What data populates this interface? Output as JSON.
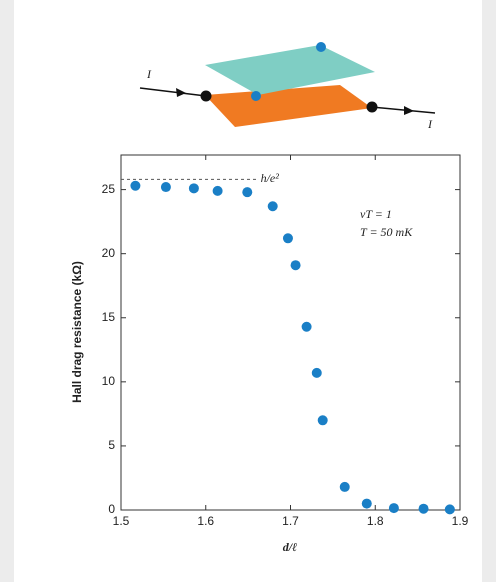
{
  "diagram": {
    "labels": [
      "I",
      "I"
    ]
  },
  "chart_data": {
    "type": "scatter",
    "x_label": "d/ℓ",
    "y_label": "Hall drag resistance (kΩ)",
    "annotations": [
      "νT = 1",
      "T = 50 mK"
    ],
    "reference_line": {
      "value": 25.8,
      "label": "h/e²",
      "x_range": [
        1.5,
        1.66
      ]
    },
    "color": "#1a7fc6",
    "x": [
      1.517,
      1.553,
      1.586,
      1.614,
      1.649,
      1.679,
      1.697,
      1.706,
      1.719,
      1.731,
      1.738,
      1.764,
      1.79,
      1.822,
      1.857,
      1.888
    ],
    "values": [
      25.3,
      25.2,
      25.1,
      24.9,
      24.8,
      23.7,
      21.2,
      19.1,
      14.3,
      10.7,
      7.0,
      1.8,
      0.5,
      0.15,
      0.1,
      0.05
    ],
    "xlim": [
      1.5,
      1.9
    ],
    "xticks": [
      1.5,
      1.6,
      1.7,
      1.8,
      1.9
    ],
    "ylim": [
      0,
      27.7
    ],
    "yticks": [
      0,
      5,
      10,
      15,
      20,
      25
    ]
  }
}
